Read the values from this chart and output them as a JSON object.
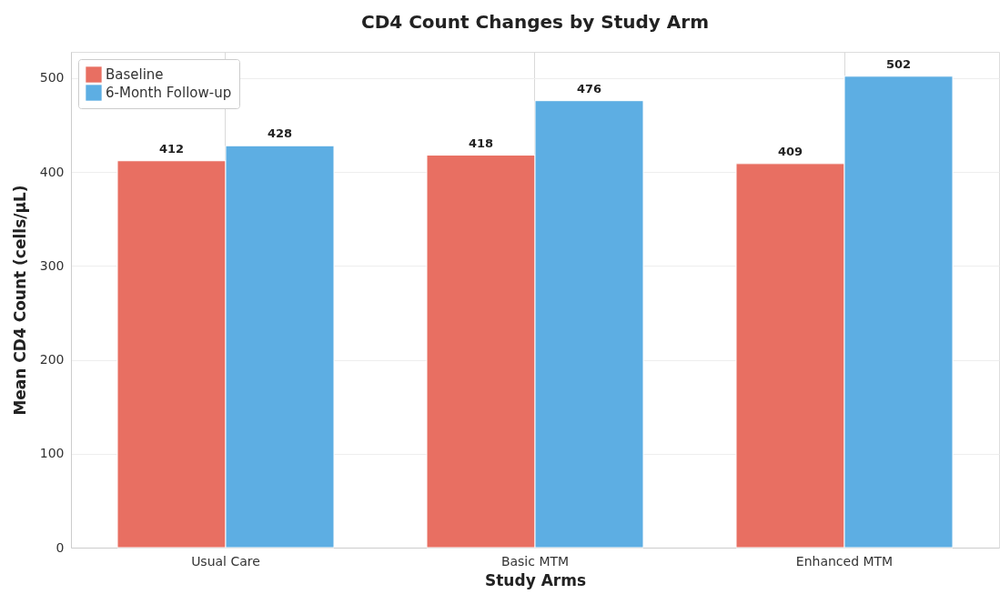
{
  "chart_data": {
    "type": "bar",
    "title": "CD4 Count Changes by Study Arm",
    "xlabel": "Study Arms",
    "ylabel": "Mean CD4 Count (cells/μL)",
    "categories": [
      "Usual Care",
      "Basic MTM",
      "Enhanced MTM"
    ],
    "series": [
      {
        "name": "Baseline",
        "color": "#e86f62",
        "values": [
          412,
          418,
          409
        ]
      },
      {
        "name": "6-Month Follow-up",
        "color": "#5daee3",
        "values": [
          428,
          476,
          502
        ]
      }
    ],
    "ylim": [
      0,
      528
    ],
    "yticks": [
      0,
      100,
      200,
      300,
      400,
      500
    ],
    "grid": true,
    "legend": "top left",
    "data_labels": true
  }
}
